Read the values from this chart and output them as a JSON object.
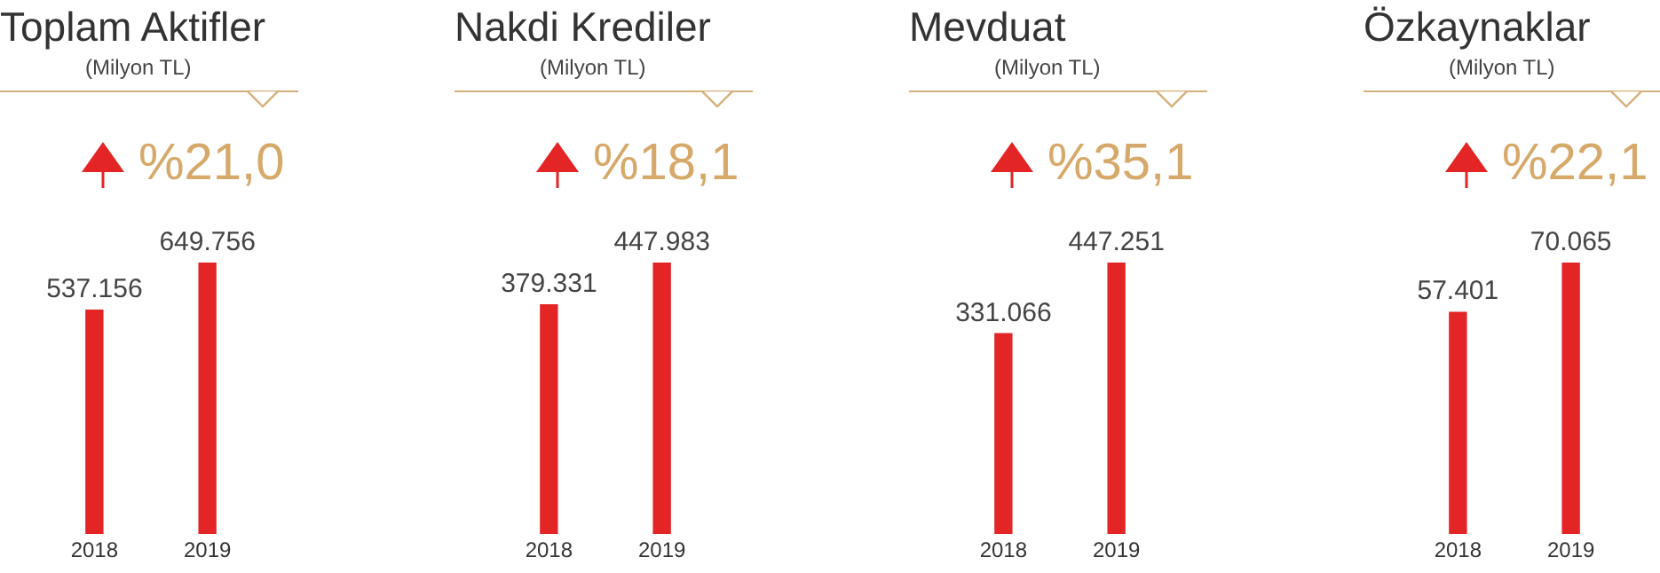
{
  "chart_data": [
    {
      "type": "bar",
      "title": "Toplam Aktifler",
      "subtitle": "(Milyon TL)",
      "annotations": [
        "%21,0"
      ],
      "categories": [
        "2018",
        "2019"
      ],
      "values": [
        537156,
        649756
      ],
      "value_labels": [
        "537.156",
        "649.756"
      ],
      "color": "#e32526",
      "tick_labels": "x",
      "grid": false,
      "legend": false
    },
    {
      "type": "bar",
      "title": "Nakdi Krediler",
      "subtitle": "(Milyon TL)",
      "annotations": [
        "%18,1"
      ],
      "categories": [
        "2018",
        "2019"
      ],
      "values": [
        379331,
        447983
      ],
      "value_labels": [
        "379.331",
        "447.983"
      ],
      "color": "#e32526",
      "tick_labels": "x",
      "grid": false,
      "legend": false
    },
    {
      "type": "bar",
      "title": "Mevduat",
      "subtitle": "(Milyon TL)",
      "annotations": [
        "%35,1"
      ],
      "categories": [
        "2018",
        "2019"
      ],
      "values": [
        331066,
        447251
      ],
      "value_labels": [
        "331.066",
        "447.251"
      ],
      "color": "#e32526",
      "tick_labels": "x",
      "grid": false,
      "legend": false
    },
    {
      "type": "bar",
      "title": "Özkaynaklar",
      "subtitle": "(Milyon TL)",
      "annotations": [
        "%22,1"
      ],
      "categories": [
        "2018",
        "2019"
      ],
      "values": [
        57401,
        70065
      ],
      "value_labels": [
        "57.401",
        "70.065"
      ],
      "color": "#e32526",
      "tick_labels": "x",
      "grid": false,
      "legend": false
    }
  ]
}
